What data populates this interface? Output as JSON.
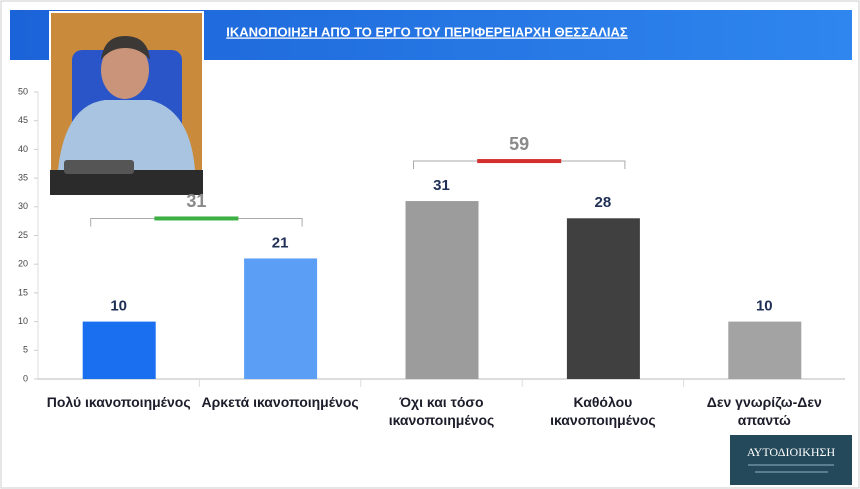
{
  "chart_data": {
    "type": "bar",
    "title": "ΙΚΑΝΟΠΟΙΗΣΗ ΑΠΌ ΤΟ ΕΡΓΟ ΤΟΥ ΠΕΡΙΦΕΡΕΙΑΡΧΗ ΘΕΣΣΑΛΙΑΣ",
    "categories": [
      "Πολύ ικανοποιημένος",
      "Αρκετά ικανοποιημένος",
      "Όχι και τόσο\nικανοποιημένος",
      "Καθόλου\nικανοποιημένος",
      "Δεν γνωρίζω-Δεν\nαπαντώ"
    ],
    "values": [
      10,
      21,
      31,
      28,
      10
    ],
    "colors": [
      "#1a6ef0",
      "#5b9ef5",
      "#9c9c9c",
      "#404040",
      "#a3a3a3"
    ],
    "ylim": [
      0,
      50
    ],
    "yticks": [
      0,
      5,
      10,
      15,
      20,
      25,
      30,
      35,
      40,
      45,
      50
    ],
    "groups": [
      {
        "value": 31,
        "from": 0,
        "to": 1,
        "color": "#3cb043"
      },
      {
        "value": 59,
        "from": 2,
        "to": 3,
        "color": "#d32f2f"
      }
    ]
  },
  "logo": {
    "text": "ΑΥΤΟΔΙΟΙΚΗΣΗ"
  }
}
